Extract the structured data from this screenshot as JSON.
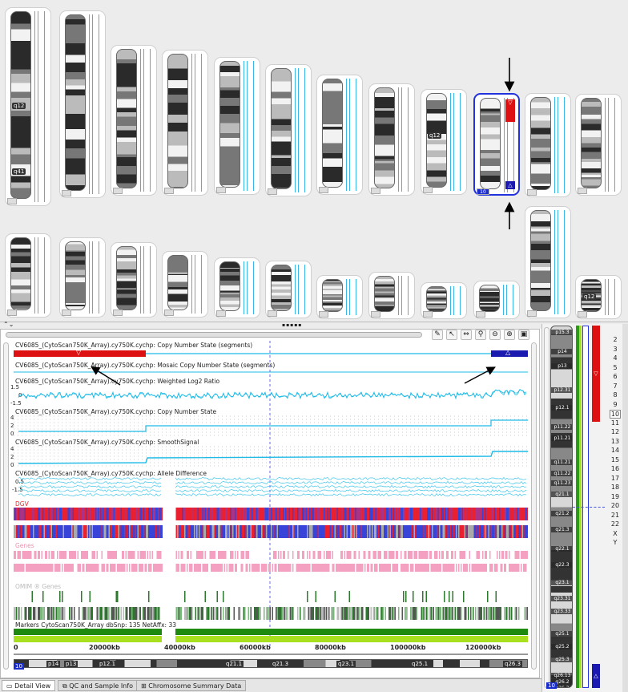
{
  "karyoview": {
    "row1": [
      {
        "band_labels": [
          "q12",
          "q41"
        ]
      },
      {
        "band_labels": []
      },
      {
        "band_labels": []
      },
      {
        "band_labels": []
      },
      {
        "band_labels": []
      },
      {
        "band_labels": []
      },
      {
        "band_labels": []
      },
      {
        "band_labels": []
      },
      {
        "band_labels": [
          "q12"
        ]
      },
      {
        "band_labels": [],
        "selected_label": "10",
        "loss_marker": "▽",
        "gain_marker": "△"
      },
      {
        "band_labels": []
      },
      {
        "band_labels": []
      }
    ],
    "row2": [
      {
        "band_labels": []
      },
      {
        "band_labels": []
      },
      {
        "band_labels": []
      },
      {
        "band_labels": []
      },
      {
        "band_labels": []
      },
      {
        "band_labels": []
      },
      {
        "band_labels": []
      },
      {
        "band_labels": []
      },
      {
        "band_labels": []
      },
      {
        "band_labels": []
      },
      {
        "band_labels": []
      },
      {
        "band_labels": [
          "q12"
        ]
      }
    ],
    "splitter_grip": "▪▪▪▪▪",
    "collapse_icon": "⌃⌄"
  },
  "colors": {
    "loss": "#dd1111",
    "gain": "#1a1ab0",
    "signal": "#1fbbe6",
    "dgv_red": "#e82030",
    "dgv_blue": "#3844d8",
    "genes": "#f4a0c0",
    "omim": "#2b7a2b",
    "markers_dark": "#1f8a10",
    "markers_light": "#a8e020"
  },
  "toolbar": {
    "icons": [
      "highlight-icon",
      "pointer-icon",
      "step-icon",
      "link-icon",
      "zoom-out-icon",
      "zoom-in-icon",
      "fit-icon"
    ],
    "glyphs": [
      "✎",
      "↖",
      "⇔",
      "⚲",
      "⊖",
      "⊕",
      "▣"
    ]
  },
  "tracks": {
    "cn_segments": "CV6085_(CytoScan750K_Array).cy750K.cychp: Copy Number State (segments)",
    "mosaic": "CV6085_(CytoScan750K_Array).cy750K.cychp: Mosaic Copy Number State (segments)",
    "log2": "CV6085_(CytoScan750K_Array).cy750K.cychp: Weighted Log2 Ratio",
    "log2_ticks": [
      "1.5",
      "0",
      "-1.5"
    ],
    "cn_state": "CV6085_(CytoScan750K_Array).cy750K.cychp: Copy Number State",
    "cn_ticks": [
      "4",
      "2",
      "0"
    ],
    "smooth": "CV6085_(CytoScan750K_Array).cy750K.cychp: SmoothSignal",
    "smooth_ticks": [
      "4",
      "2",
      "0"
    ],
    "allele": "CV6085_(CytoScan750K_Array).cy750K.cychp: Allele Difference",
    "allele_ticks": [
      "0.5",
      "-1.5"
    ],
    "dgv": "DGV",
    "genes": "Genes",
    "omim": "OMIM ® Genes",
    "markers": "Markers CytoScan750K_Array dbSnp: 135 NetAffx: 33",
    "loss_symbol": "▽",
    "gain_symbol": "△"
  },
  "ruler": {
    "ticks": [
      "0",
      "20000kb",
      "40000kb",
      "60000kb",
      "80000kb",
      "100000kb",
      "120000kb"
    ]
  },
  "ideogram_bottom": {
    "chr_label": "10",
    "bands": [
      "p14",
      "p13",
      "p12.1",
      "q21.1",
      "q21.3",
      "q23.1",
      "q25.1",
      "q26.3"
    ]
  },
  "right_panel": {
    "bands": [
      "p15.3",
      "p14",
      "p13",
      "p12.31",
      "p12.1",
      "p11.22",
      "p11.21",
      "q11.21",
      "q11.22",
      "q11.23",
      "q21.1",
      "q21.2",
      "q21.3",
      "q22.1",
      "q22.3",
      "q23.1",
      "q23.31",
      "q23.33",
      "q25.1",
      "q25.2",
      "q25.3",
      "q26.13",
      "q26.2",
      "q26.3"
    ],
    "chr_label": "10",
    "chromosomes": [
      "2",
      "3",
      "4",
      "5",
      "6",
      "7",
      "8",
      "9",
      "10",
      "11",
      "12",
      "13",
      "14",
      "15",
      "16",
      "17",
      "18",
      "19",
      "20",
      "21",
      "22",
      "X",
      "Y"
    ],
    "selected_chromosome": "10"
  },
  "tabs": [
    {
      "label": "Detail View",
      "icon": "detail-view-icon",
      "glyph": "▭"
    },
    {
      "label": "QC and Sample Info",
      "icon": "qc-icon",
      "glyph": "⧉"
    },
    {
      "label": "Chromosome Summary Data",
      "icon": "summary-icon",
      "glyph": "⊞"
    }
  ]
}
